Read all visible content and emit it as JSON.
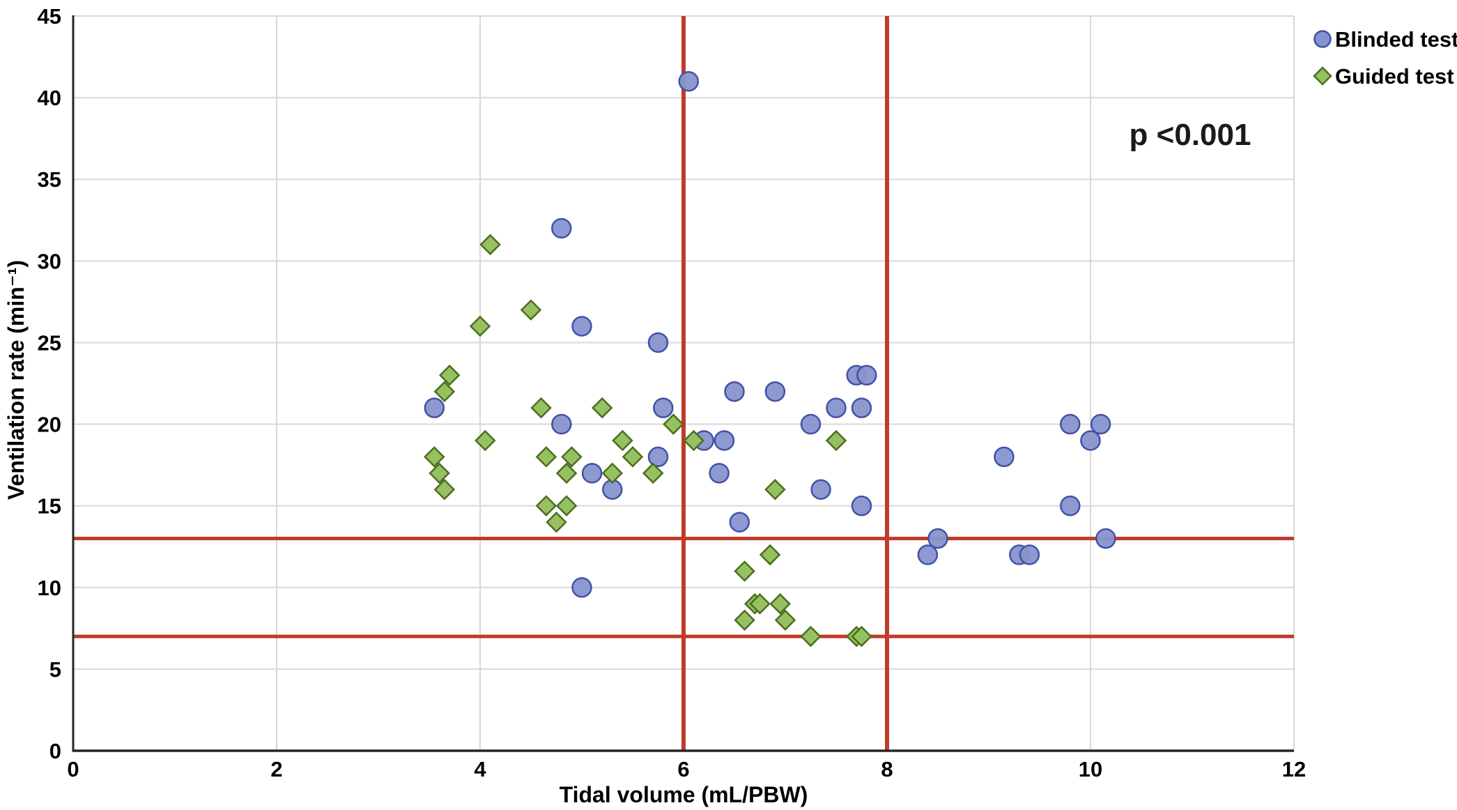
{
  "figure": {
    "background": "#ffffff",
    "text_color": "#000000",
    "grid_color": "#d8d8d8",
    "axis_color": "#262626"
  },
  "chart_data": {
    "type": "scatter",
    "title": "",
    "xlabel": "Tidal volume (mL/PBW)",
    "ylabel": "Ventilation rate (min⁻¹)",
    "xlim": [
      0,
      12
    ],
    "ylim": [
      0,
      45
    ],
    "x_ticks": [
      0,
      2,
      4,
      6,
      8,
      10,
      12
    ],
    "y_ticks": [
      0,
      5,
      10,
      15,
      20,
      25,
      30,
      35,
      40,
      45
    ],
    "grid": true,
    "legend_position": "top-right-outside",
    "annotation": "p <0.001",
    "annotation_pos": {
      "x": 10.98,
      "y": 37.7
    },
    "reference_line_color": "#C23A28",
    "reference_lines": [
      {
        "axis": "x",
        "value": 6
      },
      {
        "axis": "x",
        "value": 8
      },
      {
        "axis": "y",
        "value": 13
      },
      {
        "axis": "y",
        "value": 7
      }
    ],
    "series": [
      {
        "name": "Blinded test",
        "marker": "circle",
        "fill": "#8793CE",
        "stroke": "#4252A4",
        "points": [
          [
            6.05,
            41
          ],
          [
            4.8,
            32
          ],
          [
            5.0,
            26
          ],
          [
            5.75,
            25
          ],
          [
            3.55,
            21
          ],
          [
            5.8,
            21
          ],
          [
            4.8,
            20
          ],
          [
            5.75,
            18
          ],
          [
            5.1,
            17
          ],
          [
            5.3,
            16
          ],
          [
            5.0,
            10
          ],
          [
            6.5,
            22
          ],
          [
            6.9,
            22
          ],
          [
            7.7,
            23
          ],
          [
            7.8,
            23
          ],
          [
            7.5,
            21
          ],
          [
            7.75,
            21
          ],
          [
            7.25,
            20
          ],
          [
            6.2,
            19
          ],
          [
            6.4,
            19
          ],
          [
            6.35,
            17
          ],
          [
            7.35,
            16
          ],
          [
            6.55,
            14
          ],
          [
            7.75,
            15
          ],
          [
            8.5,
            13
          ],
          [
            8.4,
            12
          ],
          [
            9.15,
            18
          ],
          [
            9.3,
            12
          ],
          [
            9.4,
            12
          ],
          [
            9.8,
            20
          ],
          [
            10.1,
            20
          ],
          [
            10.0,
            19
          ],
          [
            9.8,
            15
          ],
          [
            10.15,
            13
          ]
        ]
      },
      {
        "name": "Guided test",
        "marker": "diamond",
        "fill": "#97C160",
        "stroke": "#4A6E1F",
        "points": [
          [
            4.1,
            31
          ],
          [
            4.5,
            27
          ],
          [
            4.0,
            26
          ],
          [
            3.7,
            23
          ],
          [
            3.65,
            22
          ],
          [
            4.6,
            21
          ],
          [
            5.2,
            21
          ],
          [
            5.9,
            20
          ],
          [
            4.05,
            19
          ],
          [
            5.4,
            19
          ],
          [
            6.1,
            19
          ],
          [
            7.5,
            19
          ],
          [
            3.55,
            18
          ],
          [
            4.65,
            18
          ],
          [
            4.9,
            18
          ],
          [
            5.5,
            18
          ],
          [
            3.6,
            17
          ],
          [
            4.85,
            17
          ],
          [
            5.3,
            17
          ],
          [
            5.7,
            17
          ],
          [
            3.65,
            16
          ],
          [
            6.9,
            16
          ],
          [
            4.65,
            15
          ],
          [
            4.85,
            15
          ],
          [
            4.75,
            14
          ],
          [
            6.85,
            12
          ],
          [
            6.6,
            11
          ],
          [
            6.7,
            9
          ],
          [
            6.75,
            9
          ],
          [
            6.95,
            9
          ],
          [
            6.6,
            8
          ],
          [
            7.0,
            8
          ],
          [
            7.25,
            7
          ],
          [
            7.7,
            7
          ],
          [
            7.75,
            7
          ]
        ]
      }
    ]
  }
}
